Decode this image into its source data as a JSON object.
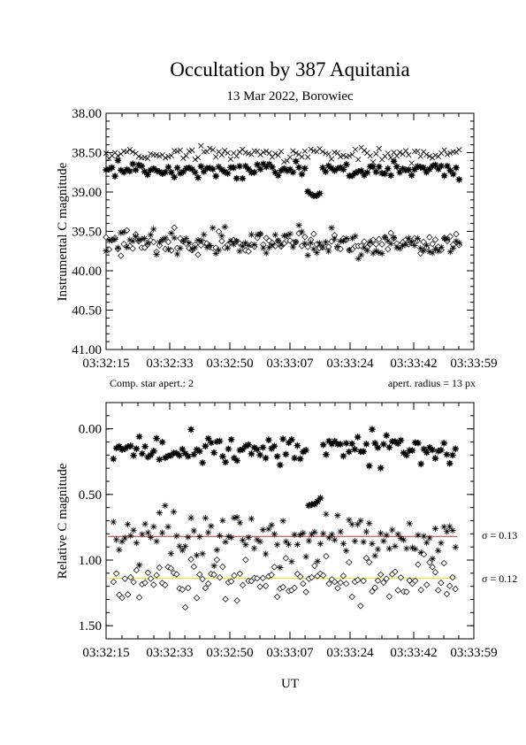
{
  "title": "Occultation by 387 Aquitania",
  "subtitle": "13 Mar 2022, Borowiec",
  "x_tick_labels": [
    "03:32:15",
    "03:32:33",
    "03:32:50",
    "03:33:07",
    "03:33:24",
    "03:33:42",
    "03:33:59"
  ],
  "xlabel": "UT",
  "colors": {
    "sigma_line_1": "#d03030",
    "sigma_line_2": "#e8e000"
  },
  "chart_data": [
    {
      "type": "scatter",
      "ylabel": "Instrumental C magnitude",
      "ylim": [
        41.0,
        38.0
      ],
      "y_tick_labels": [
        "38.00",
        "38.50",
        "39.00",
        "39.50",
        "40.00",
        "40.50",
        "41.00"
      ],
      "xlim": [
        "03:32:15",
        "03:33:59"
      ],
      "note_left": "Comp. star apert.: 2",
      "note_right": "apert. radius = 13 px",
      "series": [
        {
          "marker": "cross",
          "level": 38.52,
          "scatter": 0.06,
          "dip": null
        },
        {
          "marker": "filled-star",
          "level": 38.72,
          "scatter": 0.07,
          "dip": {
            "start": "03:33:12",
            "end": "03:33:16",
            "value": 39.02
          }
        },
        {
          "marker": "diamond",
          "level": 39.65,
          "scatter": 0.1,
          "dip": null
        },
        {
          "marker": "asterisk",
          "level": 39.65,
          "scatter": 0.12,
          "dip": null
        }
      ]
    },
    {
      "type": "scatter",
      "ylabel": "Relative C magnitude",
      "ylim": [
        1.6,
        -0.2
      ],
      "y_tick_labels": [
        "0.00",
        "0.50",
        "1.00",
        "1.50"
      ],
      "xlim": [
        "03:32:15",
        "03:33:59"
      ],
      "series": [
        {
          "marker": "filled-star",
          "level": 0.15,
          "scatter": 0.08,
          "dip": {
            "start": "03:33:12",
            "end": "03:33:16",
            "value": 0.57
          }
        },
        {
          "marker": "asterisk",
          "level": 0.82,
          "scatter": 0.13,
          "sigma_label": "σ = 0.13"
        },
        {
          "marker": "diamond",
          "level": 1.14,
          "scatter": 0.12,
          "sigma_label": "σ = 0.12"
        }
      ]
    }
  ]
}
